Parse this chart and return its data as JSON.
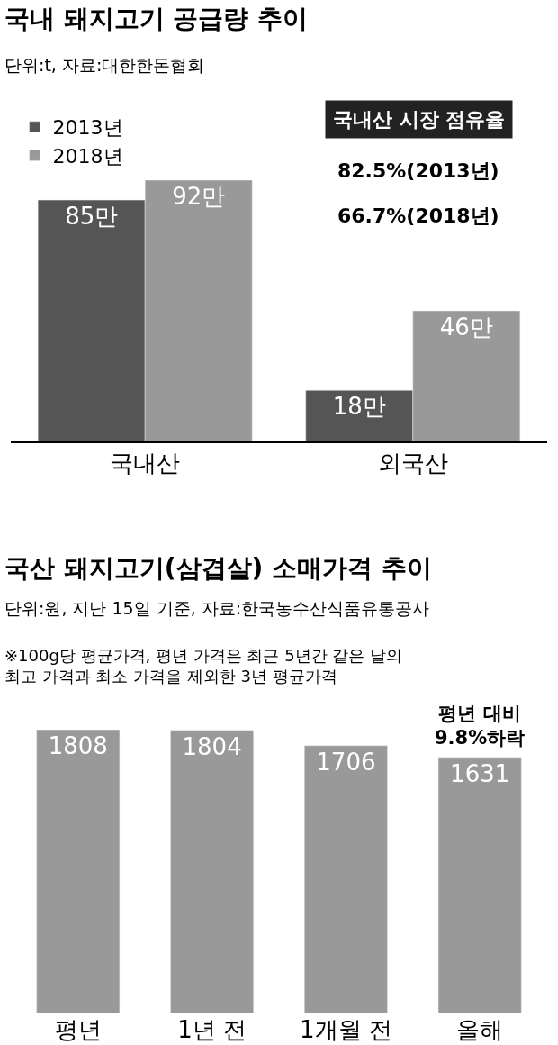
{
  "chart_data": [
    {
      "type": "bar",
      "title": "국내 돼지고기 공급량 추이",
      "subtitle": "단위:t, 자료:대한한돈협회",
      "categories": [
        "국내산",
        "외국산"
      ],
      "series": [
        {
          "name": "2013년",
          "color": "#555555",
          "values": [
            85,
            18
          ],
          "value_labels": [
            "85만",
            "18만"
          ]
        },
        {
          "name": "2018년",
          "color": "#999999",
          "values": [
            92,
            46
          ],
          "value_labels": [
            "92만",
            "46만"
          ]
        }
      ],
      "annotations": [
        "국내산 시장 점유율",
        "82.5%(2013년)",
        "66.7%(2018년)"
      ],
      "legend": "top left"
    },
    {
      "type": "bar",
      "title": "국산 돼지고기(삼겹살) 소매가격 추이",
      "subtitle": "단위:원, 지난 15일 기준, 자료:한국농수산식품유통공사",
      "categories": [
        "평년",
        "1년 전",
        "1개월 전",
        "올해"
      ],
      "values": [
        1808,
        1804,
        1706,
        1631
      ],
      "color": "#999999",
      "data_labels": true,
      "annotations": [
        "※100g당 평균가격, 평년 가격은 최근 5년간 같은 날의\n최고 가격과 최소 가격을 제외한 3년 평균가격",
        {
          "text": "평년 대비\n9.8%하락",
          "x": "올해",
          "y": 1631
        }
      ]
    }
  ]
}
